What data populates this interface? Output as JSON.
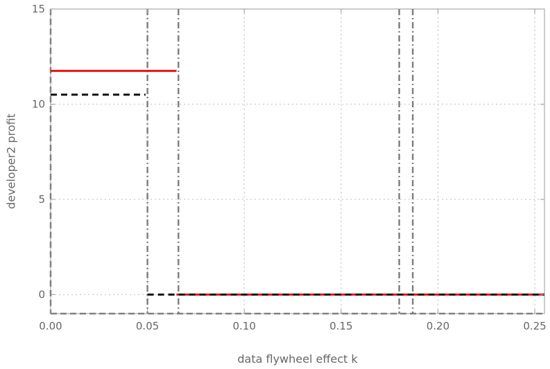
{
  "chart_data": {
    "type": "line",
    "title": "",
    "xlabel": "data flywheel effect k",
    "ylabel": "developer2 profit",
    "xlim": [
      0,
      0.255
    ],
    "ylim": [
      -1,
      15
    ],
    "xticks": [
      0,
      0.05,
      0.1,
      0.15,
      0.2,
      0.25
    ],
    "xtick_labels": [
      "0.00",
      "0.05",
      "0.10",
      "0.15",
      "0.20",
      "0.25"
    ],
    "yticks": [
      0,
      5,
      10,
      15
    ],
    "ytick_labels": [
      "0",
      "5",
      "10",
      "15"
    ],
    "grid": true,
    "legend": "none",
    "series": [
      {
        "color": "#ee1111",
        "style": "solid",
        "segments": [
          [
            [
              0,
              11.75
            ],
            [
              0.065,
              11.75
            ]
          ],
          [
            [
              0.065,
              0
            ],
            [
              0.255,
              0
            ]
          ]
        ]
      },
      {
        "color": "#111111",
        "style": "dashed",
        "segments": [
          [
            [
              0,
              10.5
            ],
            [
              0.049,
              10.5
            ]
          ],
          [
            [
              0.05,
              0
            ],
            [
              0.255,
              0
            ]
          ]
        ]
      }
    ],
    "threshold_lines": [
      {
        "x": 0.05,
        "style": "dashdot",
        "color": "#808080"
      },
      {
        "x": 0.066,
        "style": "dashdot",
        "color": "#808080"
      },
      {
        "x": 0.18,
        "style": "dashdot",
        "color": "#808080"
      },
      {
        "x": 0.187,
        "style": "dashdot",
        "color": "#808080"
      }
    ],
    "frame_lines": [
      {
        "x": 0,
        "style": "dashed",
        "color": "#808080"
      },
      {
        "y": -1,
        "style": "dashed",
        "color": "#808080"
      }
    ]
  }
}
